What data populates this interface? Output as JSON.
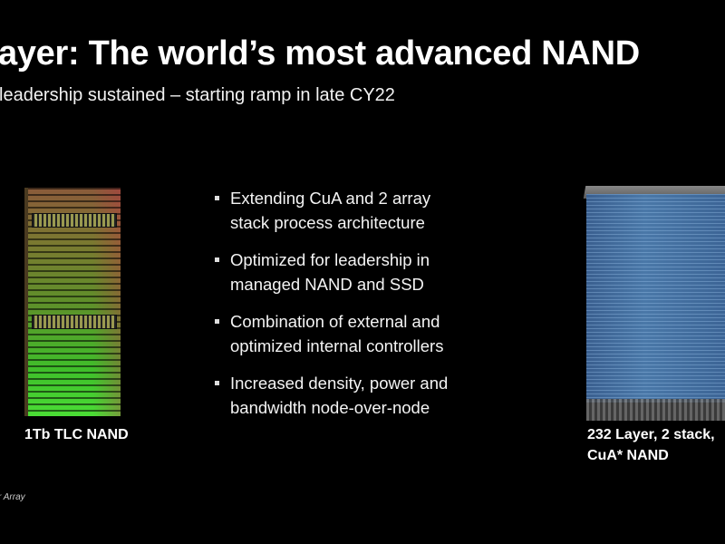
{
  "slide": {
    "title": "ayer: The world’s most advanced NAND",
    "subtitle": "leadership sustained – starting ramp in late CY22",
    "bullets": [
      {
        "line1": "Extending CuA and 2 array",
        "line2": "stack process architecture"
      },
      {
        "line1": "Optimized for leadership in",
        "line2": "managed NAND and SSD"
      },
      {
        "line1": "Combination of external and",
        "line2": "optimized internal controllers"
      },
      {
        "line1": "Increased density, power and",
        "line2": "bandwidth node-over-node"
      }
    ],
    "left_image_caption": "1Tb TLC NAND",
    "right_image_caption_line1": "232 Layer, 2 stack,",
    "right_image_caption_line2": "CuA* NAND",
    "footnote": "r Array"
  }
}
